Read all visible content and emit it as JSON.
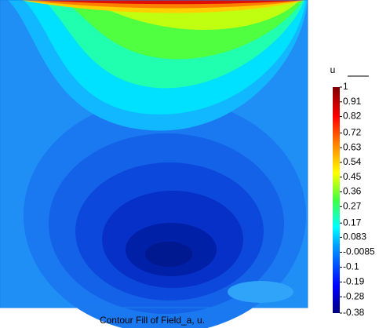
{
  "chart_data": {
    "type": "contour",
    "title": "Contour Fill of Field_a, u.",
    "colorbar_label": "u",
    "zlim": [
      -0.38,
      1
    ],
    "zticks": [
      1,
      0.91,
      0.82,
      0.72,
      0.63,
      0.54,
      0.45,
      0.36,
      0.27,
      0.17,
      0.083,
      -0.0085,
      -0.1,
      -0.19,
      -0.28,
      -0.38
    ]
  }
}
